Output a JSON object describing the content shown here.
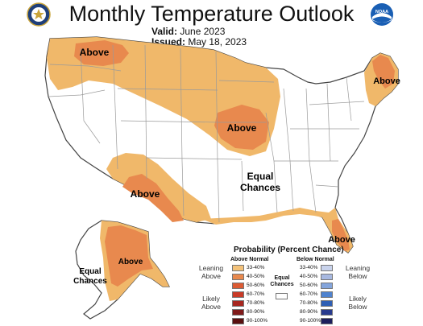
{
  "header": {
    "title": "Monthly Temperature Outlook",
    "valid_label": "Valid:",
    "valid_value": "June 2023",
    "issued_label": "Issued:",
    "issued_value": "May 18, 2023",
    "left_logo": "doc-seal-icon",
    "right_logo": "noaa-logo-icon",
    "right_logo_text": "NOAA"
  },
  "map": {
    "labels": {
      "northwest": "Above",
      "northeast": "Above",
      "midwest": "Above",
      "equal_center_1": "Equal",
      "equal_center_2": "Chances",
      "southwest": "Above",
      "florida": "Above",
      "alaska": "Above",
      "alaska_equal_1": "Equal",
      "alaska_equal_2": "Chances"
    },
    "colors": {
      "above_33_40": "#f0b86a",
      "above_40_50": "#e8894e",
      "state_lines": "#9a9a9a",
      "coast": "#444444"
    }
  },
  "legend": {
    "title": "Probability (Percent Chance)",
    "above_heading": "Above Normal",
    "below_heading": "Below Normal",
    "equal_label_1": "Equal",
    "equal_label_2": "Chances",
    "leaning_above_1": "Leaning",
    "leaning_above_2": "Above",
    "likely_above_1": "Likely",
    "likely_above_2": "Above",
    "leaning_below_1": "Leaning",
    "leaning_below_2": "Below",
    "likely_below_1": "Likely",
    "likely_below_2": "Below",
    "above": [
      {
        "range": "33-40%",
        "color": "#f3c27a"
      },
      {
        "range": "40-50%",
        "color": "#e8894e"
      },
      {
        "range": "50-60%",
        "color": "#dc5b34"
      },
      {
        "range": "60-70%",
        "color": "#c93a27"
      },
      {
        "range": "70-80%",
        "color": "#a82720"
      },
      {
        "range": "80-90%",
        "color": "#7f1a1a"
      },
      {
        "range": "90-100%",
        "color": "#5a1010"
      }
    ],
    "below": [
      {
        "range": "33-40%",
        "color": "#c9d3ec"
      },
      {
        "range": "40-50%",
        "color": "#a7b8e0"
      },
      {
        "range": "50-60%",
        "color": "#84a5dc"
      },
      {
        "range": "60-70%",
        "color": "#4f83cf"
      },
      {
        "range": "70-80%",
        "color": "#2f5fb4"
      },
      {
        "range": "80-90%",
        "color": "#283a8e"
      },
      {
        "range": "90-100%",
        "color": "#1c1e5c"
      }
    ]
  }
}
